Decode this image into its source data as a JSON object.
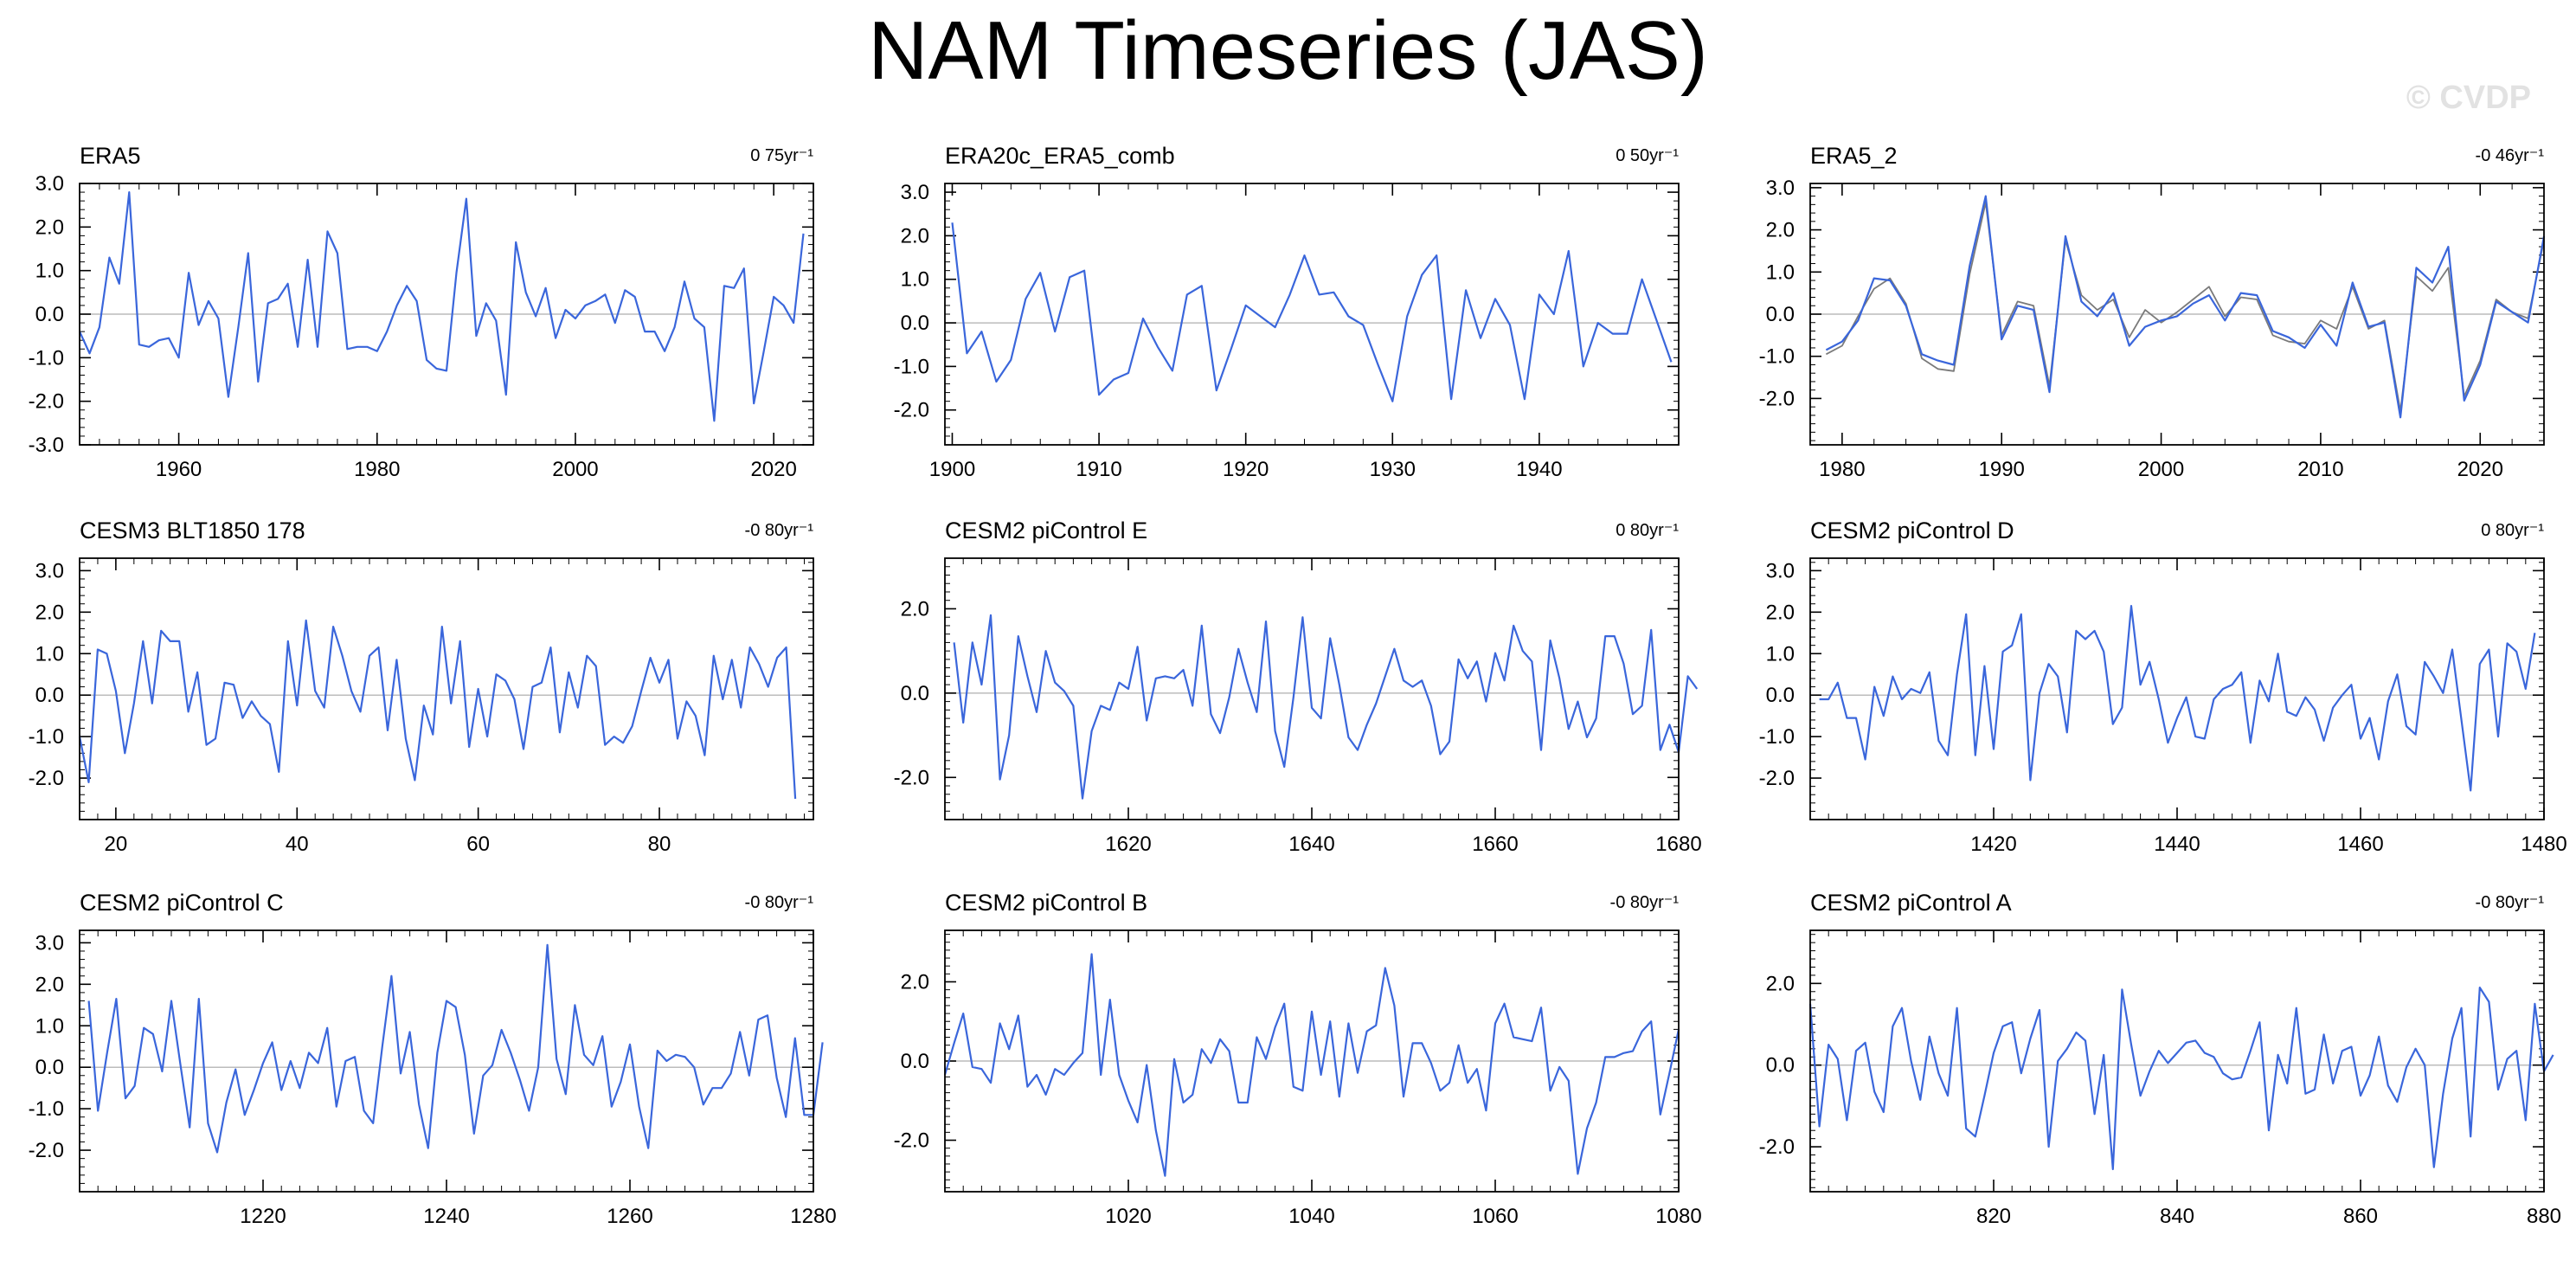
{
  "title": "NAM Timeseries (JAS)",
  "watermark": "© CVDP",
  "colors": {
    "primary_line": "#3a66db",
    "secondary_line": "#7a7a7a",
    "zero_line": "#bcbcbc",
    "axis": "#000000"
  },
  "chart_data": [
    {
      "type": "line",
      "title": "ERA5",
      "trend": "0 75yr⁻¹",
      "xlim": [
        1950,
        2024
      ],
      "ylim": [
        -3.0,
        3.0
      ],
      "xticks": [
        1960,
        1980,
        2000,
        2020
      ],
      "yticks": [
        -3.0,
        -2.0,
        -1.0,
        0.0,
        1.0,
        2.0,
        3.0
      ],
      "ytick_labels": [
        "-3.0",
        "-2.0",
        "-1.0",
        "0.0",
        "1.0",
        "2.0",
        "3.0"
      ],
      "x_start": 1950,
      "series": [
        {
          "values": [
            -0.4,
            -0.9,
            -0.3,
            1.3,
            0.7,
            2.8,
            -0.7,
            -0.75,
            -0.6,
            -0.55,
            -1.0,
            0.95,
            -0.25,
            0.3,
            -0.1,
            -1.9,
            -0.3,
            1.4,
            -1.55,
            0.25,
            0.35,
            0.7,
            -0.75,
            1.25,
            -0.75,
            1.9,
            1.4,
            -0.8,
            -0.75,
            -0.75,
            -0.85,
            -0.4,
            0.2,
            0.65,
            0.3,
            -1.05,
            -1.25,
            -1.3,
            0.95,
            2.65,
            -0.5,
            0.25,
            -0.15,
            -1.85,
            1.65,
            0.5,
            -0.05,
            0.6,
            -0.55,
            0.1,
            -0.1,
            0.2,
            0.3,
            0.45,
            -0.2,
            0.55,
            0.4,
            -0.4,
            -0.4,
            -0.85,
            -0.3,
            0.75,
            -0.1,
            -0.3,
            -2.45,
            0.65,
            0.6,
            1.05,
            -2.05,
            -0.85,
            0.4,
            0.2,
            -0.2,
            1.85
          ]
        }
      ]
    },
    {
      "type": "line",
      "title": "ERA20c_ERA5_comb",
      "trend": "0 50yr⁻¹",
      "xlim": [
        1899.5,
        1949.5
      ],
      "ylim": [
        -2.8,
        3.2
      ],
      "xticks": [
        1900,
        1910,
        1920,
        1930,
        1940
      ],
      "yticks": [
        -2.0,
        -1.0,
        0.0,
        1.0,
        2.0,
        3.0
      ],
      "ytick_labels": [
        "-2.0",
        "-1.0",
        "0.0",
        "1.0",
        "2.0",
        "3.0"
      ],
      "x_start": 1900,
      "series": [
        {
          "values": [
            2.3,
            -0.7,
            -0.2,
            -1.35,
            -0.85,
            0.55,
            1.15,
            -0.2,
            1.05,
            1.2,
            -1.65,
            -1.3,
            -1.15,
            0.1,
            -0.55,
            -1.1,
            0.65,
            0.85,
            -1.55,
            -0.6,
            0.4,
            0.15,
            -0.1,
            0.65,
            1.55,
            0.65,
            0.7,
            0.15,
            -0.05,
            -0.95,
            -1.8,
            0.15,
            1.1,
            1.55,
            -1.75,
            0.75,
            -0.35,
            0.55,
            -0.05,
            -1.75,
            0.65,
            0.2,
            1.65,
            -1.0,
            0.0,
            -0.25,
            -0.25,
            1.0,
            0.05,
            -0.9
          ]
        }
      ]
    },
    {
      "type": "line",
      "title": "ERA5_2",
      "trend": "-0 46yr⁻¹",
      "xlim": [
        1978,
        2024
      ],
      "ylim": [
        -3.1,
        3.1
      ],
      "xticks": [
        1980,
        1990,
        2000,
        2010,
        2020
      ],
      "yticks": [
        -2.0,
        -1.0,
        0.0,
        1.0,
        2.0,
        3.0
      ],
      "ytick_labels": [
        "-2.0",
        "-1.0",
        "0.0",
        "1.0",
        "2.0",
        "3.0"
      ],
      "x_start": 1979,
      "series": [
        {
          "values": [
            -0.85,
            -0.65,
            -0.15,
            0.85,
            0.8,
            0.2,
            -0.95,
            -1.1,
            -1.2,
            1.15,
            2.8,
            -0.6,
            0.2,
            0.1,
            -1.85,
            1.85,
            0.3,
            -0.05,
            0.5,
            -0.75,
            -0.3,
            -0.15,
            -0.05,
            0.25,
            0.45,
            -0.15,
            0.5,
            0.45,
            -0.4,
            -0.55,
            -0.8,
            -0.25,
            -0.75,
            0.75,
            -0.3,
            -0.2,
            -2.45,
            1.1,
            0.75,
            1.6,
            -2.05,
            -1.2,
            0.3,
            0.05,
            -0.2,
            1.85
          ]
        },
        {
          "values": [
            -0.95,
            -0.75,
            -0.05,
            0.6,
            0.85,
            0.25,
            -1.05,
            -1.3,
            -1.35,
            0.95,
            2.65,
            -0.5,
            0.3,
            0.2,
            -1.7,
            1.75,
            0.45,
            0.1,
            0.35,
            -0.55,
            0.1,
            -0.2,
            0.05,
            0.35,
            0.65,
            -0.05,
            0.4,
            0.35,
            -0.5,
            -0.65,
            -0.7,
            -0.15,
            -0.35,
            0.65,
            -0.35,
            -0.15,
            -2.3,
            0.9,
            0.55,
            1.1,
            -1.95,
            -1.1,
            0.35,
            0.05,
            -0.1,
            1.75
          ]
        }
      ]
    },
    {
      "type": "line",
      "title": "CESM3 BLT1850 178",
      "trend": "-0 80yr⁻¹",
      "xlim": [
        16,
        97
      ],
      "ylim": [
        -3.0,
        3.3
      ],
      "xticks": [
        20,
        40,
        60,
        80
      ],
      "yticks": [
        -2.0,
        -1.0,
        0.0,
        1.0,
        2.0,
        3.0
      ],
      "ytick_labels": [
        "-2.0",
        "-1.0",
        "0.0",
        "1.0",
        "2.0",
        "3.0"
      ],
      "x_start": 16,
      "series": [
        {
          "values": [
            -1.0,
            -2.1,
            1.1,
            1.0,
            0.1,
            -1.4,
            -0.2,
            1.3,
            -0.2,
            1.55,
            1.3,
            1.3,
            -0.4,
            0.55,
            -1.2,
            -1.05,
            0.3,
            0.25,
            -0.55,
            -0.15,
            -0.5,
            -0.7,
            -1.85,
            1.3,
            -0.25,
            1.8,
            0.1,
            -0.3,
            1.65,
            0.95,
            0.1,
            -0.4,
            0.95,
            1.15,
            -0.85,
            0.85,
            -1.05,
            -2.05,
            -0.25,
            -0.95,
            1.65,
            -0.2,
            1.3,
            -1.25,
            0.15,
            -1.0,
            0.5,
            0.35,
            -0.1,
            -1.3,
            0.2,
            0.3,
            1.15,
            -0.9,
            0.55,
            -0.3,
            0.95,
            0.7,
            -1.2,
            -1.0,
            -1.15,
            -0.75,
            0.1,
            0.9,
            0.3,
            0.85,
            -1.05,
            -0.15,
            -0.5,
            -1.45,
            0.95,
            -0.1,
            0.85,
            -0.3,
            1.15,
            0.75,
            0.2,
            0.9,
            1.15,
            -2.5
          ]
        }
      ]
    },
    {
      "type": "line",
      "title": "CESM2 piControl E",
      "trend": "0 80yr⁻¹",
      "xlim": [
        1600,
        1680
      ],
      "ylim": [
        -3.0,
        3.2
      ],
      "xticks": [
        1620,
        1640,
        1660,
        1680
      ],
      "yticks": [
        -2.0,
        0.0,
        2.0
      ],
      "ytick_labels": [
        "-2.0",
        "0.0",
        "2.0"
      ],
      "x_start": 1601,
      "series": [
        {
          "values": [
            1.2,
            -0.7,
            1.2,
            0.2,
            1.85,
            -2.05,
            -1.0,
            1.35,
            0.4,
            -0.45,
            1.0,
            0.25,
            0.05,
            -0.3,
            -2.5,
            -0.9,
            -0.3,
            -0.4,
            0.25,
            0.1,
            1.1,
            -0.65,
            0.35,
            0.4,
            0.35,
            0.55,
            -0.3,
            1.6,
            -0.5,
            -0.95,
            -0.1,
            1.05,
            0.25,
            -0.45,
            1.7,
            -0.9,
            -1.75,
            -0.1,
            1.8,
            -0.35,
            -0.6,
            1.3,
            0.2,
            -1.05,
            -1.35,
            -0.75,
            -0.25,
            0.4,
            1.05,
            0.3,
            0.15,
            0.3,
            -0.3,
            -1.45,
            -1.15,
            0.8,
            0.35,
            0.75,
            -0.2,
            0.95,
            0.3,
            1.6,
            1.0,
            0.75,
            -1.35,
            1.25,
            0.35,
            -0.85,
            -0.2,
            -1.05,
            -0.6,
            1.35,
            1.35,
            0.7,
            -0.5,
            -0.3,
            1.5,
            -1.35,
            -0.75,
            -1.4,
            0.4,
            0.1
          ]
        }
      ]
    },
    {
      "type": "line",
      "title": "CESM2 piControl D",
      "trend": "0 80yr⁻¹",
      "xlim": [
        1400,
        1480
      ],
      "ylim": [
        -3.0,
        3.3
      ],
      "xticks": [
        1420,
        1440,
        1460,
        1480
      ],
      "yticks": [
        -2.0,
        -1.0,
        0.0,
        1.0,
        2.0,
        3.0
      ],
      "ytick_labels": [
        "-2.0",
        "-1.0",
        "0.0",
        "1.0",
        "2.0",
        "3.0"
      ],
      "x_start": 1401,
      "series": [
        {
          "values": [
            -0.1,
            -0.1,
            0.3,
            -0.55,
            -0.55,
            -1.55,
            0.2,
            -0.5,
            0.45,
            -0.1,
            0.15,
            0.05,
            0.55,
            -1.1,
            -1.45,
            0.5,
            1.95,
            -1.45,
            0.7,
            -1.3,
            1.05,
            1.2,
            1.95,
            -2.05,
            0.05,
            0.75,
            0.45,
            -0.9,
            1.55,
            1.35,
            1.55,
            1.05,
            -0.7,
            -0.3,
            2.15,
            0.25,
            0.8,
            -0.1,
            -1.15,
            -0.55,
            -0.05,
            -1.0,
            -1.05,
            -0.1,
            0.15,
            0.25,
            0.55,
            -1.15,
            0.35,
            -0.15,
            1.0,
            -0.4,
            -0.5,
            -0.05,
            -0.35,
            -1.1,
            -0.3,
            0.0,
            0.25,
            -1.05,
            -0.55,
            -1.55,
            -0.15,
            0.5,
            -0.75,
            -0.95,
            0.8,
            0.45,
            0.05,
            1.1,
            -0.6,
            -2.3,
            0.75,
            1.1,
            -1.0,
            1.25,
            1.05,
            0.15,
            1.5
          ]
        }
      ]
    },
    {
      "type": "line",
      "title": "CESM2 piControl C",
      "trend": "-0 80yr⁻¹",
      "xlim": [
        1200,
        1280
      ],
      "ylim": [
        -3.0,
        3.3
      ],
      "xticks": [
        1220,
        1240,
        1260,
        1280
      ],
      "yticks": [
        -2.0,
        -1.0,
        0.0,
        1.0,
        2.0,
        3.0
      ],
      "ytick_labels": [
        "-2.0",
        "-1.0",
        "0.0",
        "1.0",
        "2.0",
        "3.0"
      ],
      "x_start": 1201,
      "series": [
        {
          "values": [
            1.6,
            -1.05,
            0.35,
            1.65,
            -0.75,
            -0.45,
            0.95,
            0.8,
            -0.1,
            1.6,
            0.05,
            -1.45,
            1.65,
            -1.35,
            -2.05,
            -0.85,
            -0.05,
            -1.15,
            -0.55,
            0.1,
            0.6,
            -0.55,
            0.15,
            -0.5,
            0.35,
            0.1,
            0.95,
            -0.95,
            0.15,
            0.25,
            -1.05,
            -1.35,
            0.5,
            2.2,
            -0.15,
            0.85,
            -0.9,
            -1.95,
            0.35,
            1.6,
            1.45,
            0.3,
            -1.6,
            -0.2,
            0.05,
            0.9,
            0.35,
            -0.3,
            -1.05,
            0.0,
            2.95,
            0.2,
            -0.65,
            1.5,
            0.3,
            0.05,
            0.75,
            -0.95,
            -0.35,
            0.55,
            -0.95,
            -1.95,
            0.4,
            0.15,
            0.3,
            0.25,
            0.0,
            -0.9,
            -0.5,
            -0.5,
            -0.15,
            0.85,
            -0.2,
            1.15,
            1.25,
            -0.25,
            -1.2,
            0.7,
            -1.15,
            -1.15,
            0.6
          ]
        }
      ]
    },
    {
      "type": "line",
      "title": "CESM2 piControl B",
      "trend": "-0 80yr⁻¹",
      "xlim": [
        1000,
        1080
      ],
      "ylim": [
        -3.3,
        3.3
      ],
      "xticks": [
        1020,
        1040,
        1060,
        1080
      ],
      "yticks": [
        -2.0,
        0.0,
        2.0
      ],
      "ytick_labels": [
        "-2.0",
        "0.0",
        "2.0"
      ],
      "x_start": 1000,
      "series": [
        {
          "values": [
            -0.35,
            0.45,
            1.2,
            -0.15,
            -0.2,
            -0.55,
            0.95,
            0.3,
            1.15,
            -0.65,
            -0.35,
            -0.85,
            -0.2,
            -0.35,
            -0.05,
            0.2,
            2.7,
            -0.35,
            1.55,
            -0.35,
            -1.0,
            -1.55,
            -0.1,
            -1.75,
            -2.9,
            0.05,
            -1.05,
            -0.85,
            0.3,
            -0.05,
            0.55,
            0.25,
            -1.05,
            -1.05,
            0.6,
            0.05,
            0.85,
            1.45,
            -0.65,
            -0.75,
            1.25,
            -0.35,
            1.0,
            -0.9,
            0.95,
            -0.3,
            0.75,
            0.9,
            2.35,
            1.4,
            -0.9,
            0.45,
            0.45,
            -0.05,
            -0.75,
            -0.55,
            0.4,
            -0.55,
            -0.2,
            -1.25,
            0.95,
            1.45,
            0.6,
            0.55,
            0.5,
            1.35,
            -0.75,
            -0.15,
            -0.5,
            -2.85,
            -1.7,
            -1.05,
            0.1,
            0.1,
            0.2,
            0.25,
            0.75,
            1.0,
            -1.35,
            -0.3,
            0.8
          ]
        }
      ]
    },
    {
      "type": "line",
      "title": "CESM2 piControl A",
      "trend": "-0 80yr⁻¹",
      "xlim": [
        800,
        880
      ],
      "ylim": [
        -3.1,
        3.3
      ],
      "xticks": [
        820,
        840,
        860,
        880
      ],
      "yticks": [
        -2.0,
        0.0,
        2.0
      ],
      "ytick_labels": [
        "-2.0",
        "0.0",
        "2.0"
      ],
      "x_start": 800,
      "series": [
        {
          "values": [
            1.5,
            -1.5,
            0.5,
            0.15,
            -1.35,
            0.35,
            0.55,
            -0.65,
            -1.15,
            0.95,
            1.4,
            0.1,
            -0.85,
            0.7,
            -0.2,
            -0.75,
            1.4,
            -1.55,
            -1.75,
            -0.75,
            0.3,
            0.95,
            1.05,
            -0.2,
            0.65,
            1.35,
            -2.0,
            0.1,
            0.4,
            0.8,
            0.6,
            -1.2,
            0.25,
            -2.55,
            1.85,
            0.5,
            -0.75,
            -0.15,
            0.35,
            0.05,
            0.3,
            0.55,
            0.6,
            0.3,
            0.2,
            -0.2,
            -0.35,
            -0.3,
            0.35,
            1.05,
            -1.6,
            0.25,
            -0.45,
            1.4,
            -0.7,
            -0.6,
            0.75,
            -0.45,
            0.35,
            0.45,
            -0.75,
            -0.25,
            0.7,
            -0.5,
            -0.9,
            -0.05,
            0.4,
            0.0,
            -2.5,
            -0.7,
            0.65,
            1.4,
            -1.75,
            1.9,
            1.55,
            -0.6,
            0.15,
            0.35,
            -1.35,
            1.5,
            -0.15,
            0.25
          ]
        }
      ]
    }
  ]
}
